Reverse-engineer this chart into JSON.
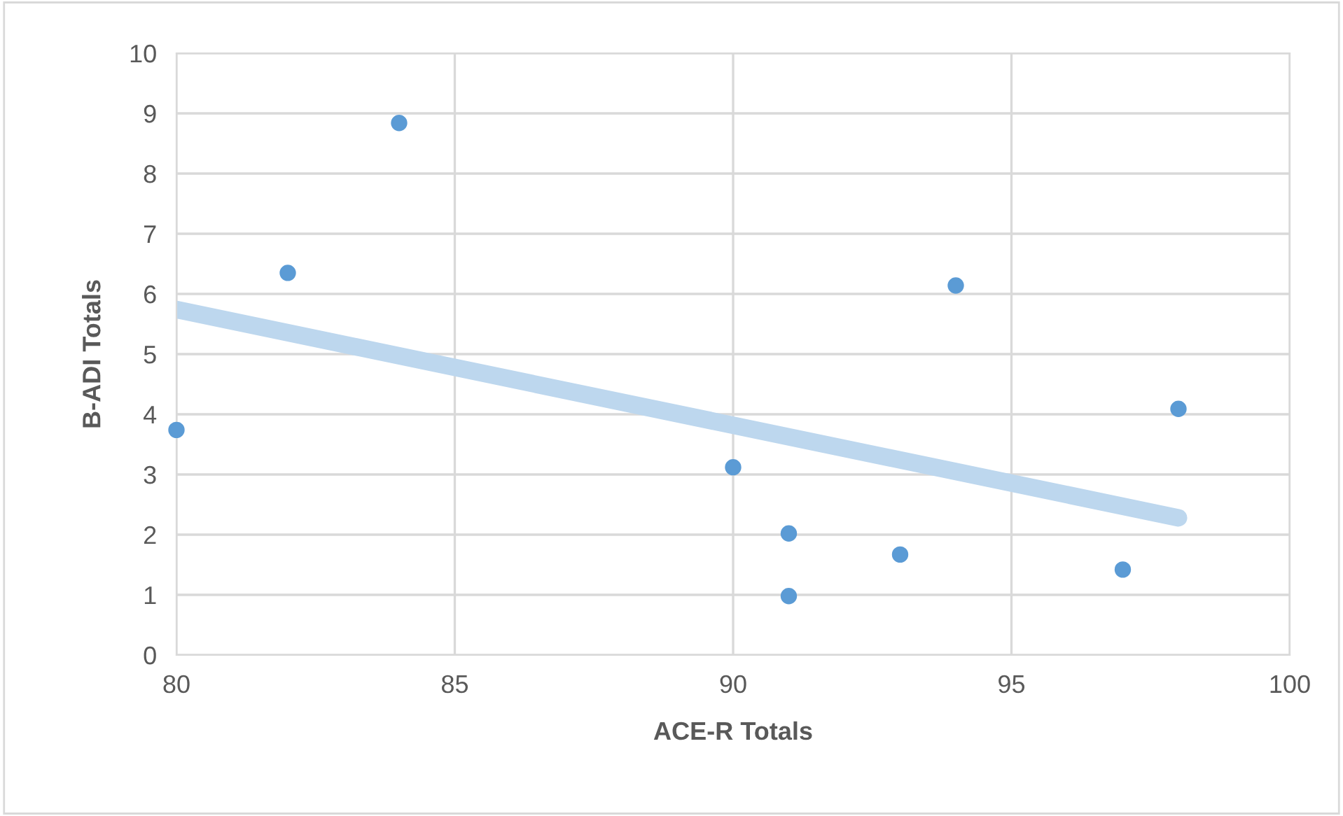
{
  "chart_data": {
    "type": "scatter",
    "xlabel": "ACE-R Totals",
    "ylabel": "B-ADI Totals",
    "series": [
      {
        "marker": "circle",
        "color": "#5b9bd5",
        "x": [
          80,
          82,
          84,
          90,
          91,
          91,
          93,
          94,
          97,
          98
        ],
        "values": [
          3.74,
          6.35,
          8.84,
          3.12,
          2.02,
          0.98,
          1.67,
          6.14,
          1.42,
          4.09
        ]
      },
      {
        "type": "line",
        "marker": "none",
        "color": "#bdd7ee",
        "x": [
          80,
          98
        ],
        "values": [
          5.74,
          2.28
        ]
      }
    ],
    "xlim": [
      80,
      100
    ],
    "xticks": [
      80,
      85,
      90,
      95,
      100
    ],
    "ylim": [
      0,
      10
    ],
    "yticks": [
      0,
      1,
      2,
      3,
      4,
      5,
      6,
      7,
      8,
      9,
      10
    ],
    "grid": true
  }
}
